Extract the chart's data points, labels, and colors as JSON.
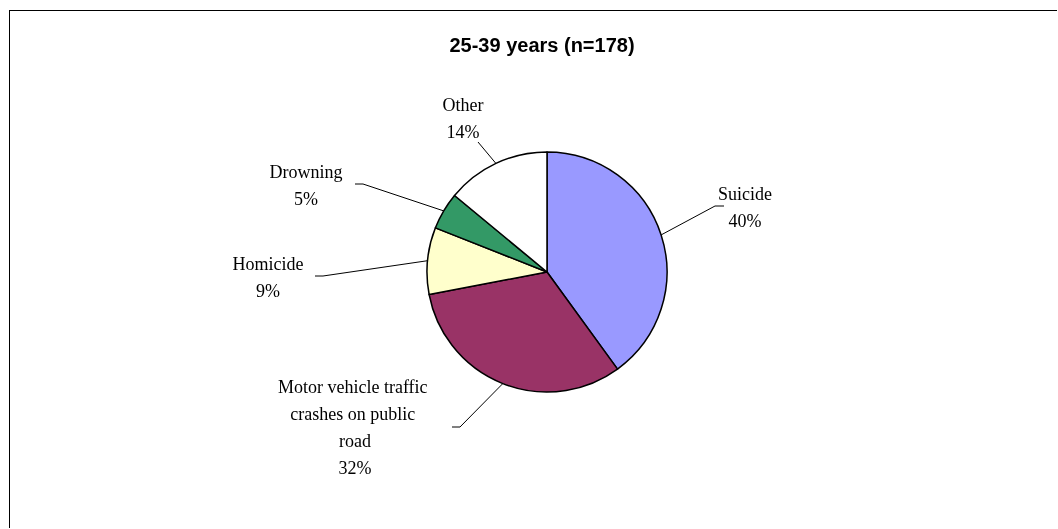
{
  "chart_data": {
    "type": "pie",
    "title": "25-39 years (n=178)",
    "categories": [
      "Suicide",
      "Motor vehicle traffic crashes on public road",
      "Homicide",
      "Drowning",
      "Other"
    ],
    "values": [
      40,
      32,
      9,
      5,
      14
    ],
    "colors": [
      "#9999ff",
      "#993366",
      "#ffffcc",
      "#339966",
      "#ffffff"
    ],
    "value_labels": [
      "40%",
      "32%",
      "9%",
      "5%",
      "14%"
    ]
  }
}
